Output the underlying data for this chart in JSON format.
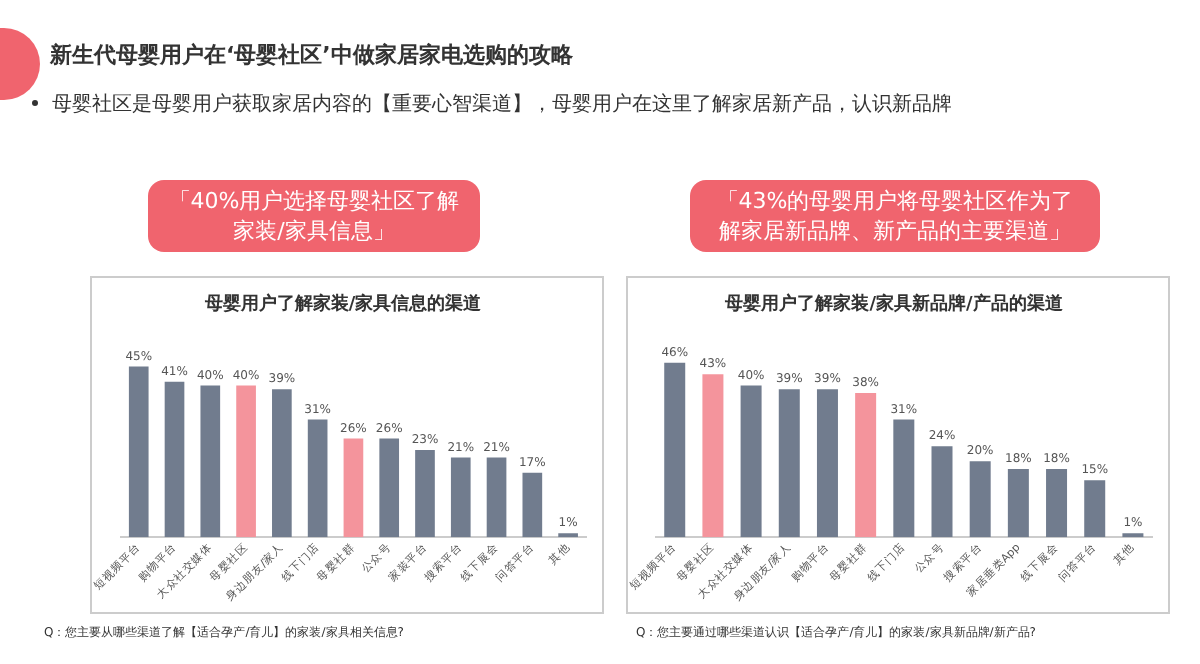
{
  "chart_data": [
    {
      "type": "bar",
      "title": "母婴用户了解家装/家具信息的渠道",
      "annotations": [
        "新生代母婴用户在‘母婴社区’中做家居家电选购的攻略",
        "母婴社区是母婴用户获取家居内容的【重要心智渠道】，母婴用户在这里了解家居新产品，认识新品牌",
        "「40%用户选择母婴社区了解家装/家具信息」",
        "Q：您主要从哪些渠道了解【适合孕产/育儿】的家装/家具相关信息?"
      ],
      "categories": [
        "短视频平台",
        "购物平台",
        "大众社交媒体",
        "母婴社区",
        "身边朋友/家人",
        "线下门店",
        "母婴社群",
        "公众号",
        "家装平台",
        "搜索平台",
        "线下展会",
        "问答平台",
        "其他"
      ],
      "values": [
        45,
        41,
        40,
        40,
        39,
        31,
        26,
        26,
        23,
        21,
        21,
        17,
        1
      ],
      "value_labels": [
        "45%",
        "41%",
        "40%",
        "40%",
        "39%",
        "31%",
        "26%",
        "26%",
        "23%",
        "21%",
        "21%",
        "17%",
        "1%"
      ],
      "colors": [
        "#717c8e",
        "#717c8e",
        "#717c8e",
        "#f4949c",
        "#717c8e",
        "#717c8e",
        "#f4949c",
        "#717c8e",
        "#717c8e",
        "#717c8e",
        "#717c8e",
        "#717c8e",
        "#717c8e"
      ],
      "grid": false,
      "legend": false,
      "tick_labels": "x"
    },
    {
      "type": "bar",
      "title": "母婴用户了解家装/家具新品牌/产品的渠道",
      "annotations": [
        "「43%的母婴用户将母婴社区作为了解家居新品牌、新产品的主要渠道」",
        "Q：您主要通过哪些渠道认识【适合孕产/育儿】的家装/家具新品牌/新产品?"
      ],
      "categories": [
        "短视频平台",
        "母婴社区",
        "大众社交媒体",
        "身边朋友/家人",
        "购物平台",
        "母婴社群",
        "线下门店",
        "公众号",
        "搜索平台",
        "家居垂类App",
        "线下展会",
        "问答平台",
        "其他"
      ],
      "values": [
        46,
        43,
        40,
        39,
        39,
        38,
        31,
        24,
        20,
        18,
        18,
        15,
        1
      ],
      "value_labels": [
        "46%",
        "43%",
        "40%",
        "39%",
        "39%",
        "38%",
        "31%",
        "24%",
        "20%",
        "18%",
        "18%",
        "15%",
        "1%"
      ],
      "colors": [
        "#717c8e",
        "#f4949c",
        "#717c8e",
        "#717c8e",
        "#717c8e",
        "#f4949c",
        "#717c8e",
        "#717c8e",
        "#717c8e",
        "#717c8e",
        "#717c8e",
        "#717c8e",
        "#717c8e"
      ],
      "grid": false,
      "legend": false,
      "tick_labels": "x"
    }
  ]
}
